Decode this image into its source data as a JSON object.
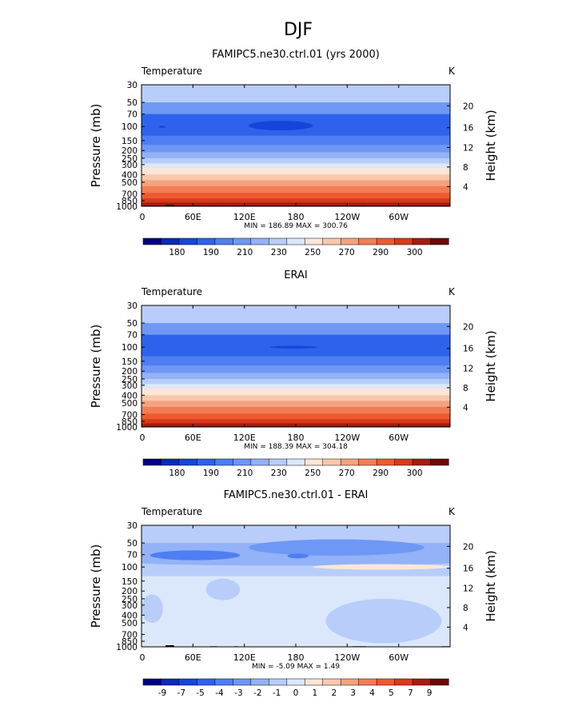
{
  "page_title": "DJF",
  "chart_data": [
    {
      "type": "heatmap",
      "title": "FAMIPC5.ne30.ctrl.01 (yrs 2000)",
      "variable_label": "Temperature",
      "units": "K",
      "ylabel": "Pressure (mb)",
      "ylabel_right": "Height (km)",
      "y_scale": "log",
      "y_ticks": [
        "30",
        "50",
        "70",
        "100",
        "150",
        "200",
        "250",
        "300",
        "400",
        "500",
        "700",
        "850",
        "1000"
      ],
      "y_ticks_right": [
        "20",
        "16",
        "12",
        "8",
        "4"
      ],
      "x_ticks": [
        "0",
        "60E",
        "120E",
        "180",
        "120W",
        "60W"
      ],
      "x_range_deg": [
        0,
        360
      ],
      "stats": "MIN = 186.89   MAX = 300.76",
      "colorbar_labels": [
        "180",
        "190",
        "210",
        "230",
        "250",
        "270",
        "290",
        "300"
      ],
      "colorbar_colors": [
        "#01007f",
        "#0a2ab8",
        "#1446da",
        "#2e62ec",
        "#4e7ef2",
        "#6f97f5",
        "#93b2f7",
        "#b8cdf9",
        "#dbe7fb",
        "#fbe6d8",
        "#f8c8ad",
        "#f5a37e",
        "#f27d55",
        "#ee5a2f",
        "#d9391a",
        "#a81b0d",
        "#6d0806"
      ],
      "profile": [
        {
          "p": 30,
          "c": 7
        },
        {
          "p": 50,
          "c": 5
        },
        {
          "p": 70,
          "c": 3
        },
        {
          "p": 100,
          "c": 3
        },
        {
          "p": 130,
          "c": 4
        },
        {
          "p": 170,
          "c": 5
        },
        {
          "p": 210,
          "c": 6
        },
        {
          "p": 250,
          "c": 7
        },
        {
          "p": 290,
          "c": 8
        },
        {
          "p": 330,
          "c": 9
        },
        {
          "p": 400,
          "c": 10
        },
        {
          "p": 470,
          "c": 11
        },
        {
          "p": 560,
          "c": 12
        },
        {
          "p": 680,
          "c": 13
        },
        {
          "p": 800,
          "c": 14
        },
        {
          "p": 900,
          "c": 15
        },
        {
          "p": 980,
          "c": 16
        }
      ],
      "features": [
        {
          "lon": [
            125,
            200
          ],
          "p": [
            85,
            112
          ],
          "c": 2
        },
        {
          "lon": [
            20,
            28
          ],
          "p": [
            98,
            104
          ],
          "c": 2
        }
      ],
      "topo": true
    },
    {
      "type": "heatmap",
      "title": "ERAI",
      "variable_label": "Temperature",
      "units": "K",
      "ylabel": "Pressure (mb)",
      "ylabel_right": "Height (km)",
      "y_scale": "log",
      "y_ticks": [
        "30",
        "50",
        "70",
        "100",
        "150",
        "200",
        "250",
        "300",
        "400",
        "500",
        "700",
        "850",
        "1000"
      ],
      "y_ticks_right": [
        "20",
        "16",
        "12",
        "8",
        "4"
      ],
      "x_ticks": [
        "0",
        "60E",
        "120E",
        "180",
        "120W",
        "60W"
      ],
      "x_range_deg": [
        0,
        360
      ],
      "stats": "MIN = 188.39   MAX = 304.18",
      "colorbar_labels": [
        "180",
        "190",
        "210",
        "230",
        "250",
        "270",
        "290",
        "300"
      ],
      "colorbar_colors": [
        "#01007f",
        "#0a2ab8",
        "#1446da",
        "#2e62ec",
        "#4e7ef2",
        "#6f97f5",
        "#93b2f7",
        "#b8cdf9",
        "#dbe7fb",
        "#fbe6d8",
        "#f8c8ad",
        "#f5a37e",
        "#f27d55",
        "#ee5a2f",
        "#d9391a",
        "#a81b0d",
        "#6d0806"
      ],
      "profile": [
        {
          "p": 30,
          "c": 7
        },
        {
          "p": 50,
          "c": 5
        },
        {
          "p": 70,
          "c": 3
        },
        {
          "p": 100,
          "c": 3
        },
        {
          "p": 130,
          "c": 4
        },
        {
          "p": 170,
          "c": 5
        },
        {
          "p": 210,
          "c": 6
        },
        {
          "p": 250,
          "c": 7
        },
        {
          "p": 290,
          "c": 8
        },
        {
          "p": 330,
          "c": 9
        },
        {
          "p": 400,
          "c": 10
        },
        {
          "p": 470,
          "c": 11
        },
        {
          "p": 560,
          "c": 12
        },
        {
          "p": 680,
          "c": 13
        },
        {
          "p": 800,
          "c": 14
        },
        {
          "p": 900,
          "c": 15
        },
        {
          "p": 980,
          "c": 16
        }
      ],
      "features": [
        {
          "lon": [
            150,
            205
          ],
          "p": [
            96,
            104
          ],
          "c": 2
        }
      ],
      "topo": false
    },
    {
      "type": "heatmap",
      "title": "FAMIPC5.ne30.ctrl.01 - ERAI",
      "variable_label": "Temperature",
      "units": "K",
      "ylabel": "Pressure (mb)",
      "ylabel_right": "Height (km)",
      "y_scale": "log",
      "y_ticks": [
        "30",
        "50",
        "70",
        "100",
        "150",
        "200",
        "250",
        "300",
        "400",
        "500",
        "700",
        "850",
        "1000"
      ],
      "y_ticks_right": [
        "20",
        "16",
        "12",
        "8",
        "4"
      ],
      "x_ticks": [
        "0",
        "60E",
        "120E",
        "180",
        "120W",
        "60W"
      ],
      "x_range_deg": [
        0,
        360
      ],
      "stats": "MIN =  -5.09   MAX =    1.49",
      "colorbar_labels": [
        "-9",
        "-7",
        "-5",
        "-4",
        "-3",
        "-2",
        "-1",
        "0",
        "1",
        "2",
        "3",
        "4",
        "5",
        "7",
        "9"
      ],
      "colorbar_colors": [
        "#01007f",
        "#0a2ab8",
        "#1446da",
        "#2e62ec",
        "#4e7ef2",
        "#6f97f5",
        "#93b2f7",
        "#b8cdf9",
        "#dbe7fb",
        "#fbe6d8",
        "#f8c8ad",
        "#f5a37e",
        "#f27d55",
        "#ee5a2f",
        "#d9391a",
        "#a81b0d",
        "#6d0806"
      ],
      "profile": [
        {
          "p": 30,
          "c": 7
        },
        {
          "p": 50,
          "c": 6
        },
        {
          "p": 70,
          "c": 6
        },
        {
          "p": 90,
          "c": 7
        },
        {
          "p": 130,
          "c": 8
        },
        {
          "p": 300,
          "c": 8
        },
        {
          "p": 500,
          "c": 8
        },
        {
          "p": 700,
          "c": 8
        },
        {
          "p": 980,
          "c": 8
        }
      ],
      "features": [
        {
          "lon": [
            125,
            330
          ],
          "p": [
            45,
            72
          ],
          "c": 5
        },
        {
          "lon": [
            10,
            115
          ],
          "p": [
            62,
            82
          ],
          "c": 4
        },
        {
          "lon": [
            170,
            195
          ],
          "p": [
            68,
            78
          ],
          "c": 4
        },
        {
          "lon": [
            0,
            360
          ],
          "p": [
            82,
            96
          ],
          "c": 6
        },
        {
          "lon": [
            200,
            360
          ],
          "p": [
            92,
            108
          ],
          "c": 9
        },
        {
          "lon": [
            215,
            350
          ],
          "p": [
            250,
            900
          ],
          "c": 7
        },
        {
          "lon": [
            0,
            25
          ],
          "p": [
            220,
            500
          ],
          "c": 7
        },
        {
          "lon": [
            75,
            115
          ],
          "p": [
            140,
            260
          ],
          "c": 7
        }
      ],
      "topo": true
    }
  ]
}
